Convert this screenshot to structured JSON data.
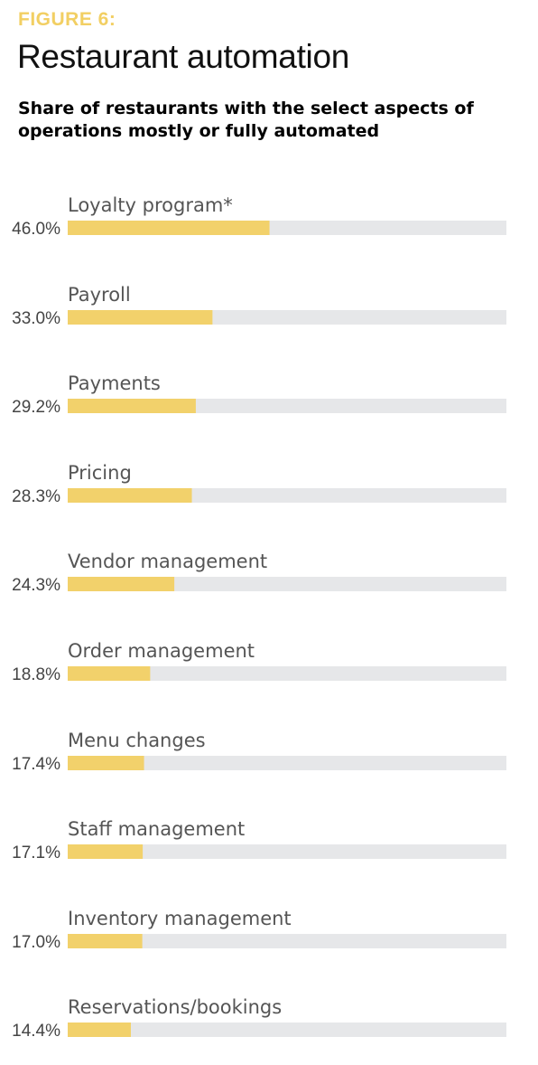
{
  "figure_label": "FIGURE 6:",
  "title": "Restaurant automation",
  "subtitle": "Share of restaurants with the select aspects of operations mostly or fully automated",
  "colors": {
    "bar": "#f2d16b",
    "track": "#e6e7e9",
    "label_accent": "#f2cf63"
  },
  "chart_data": {
    "type": "bar",
    "orientation": "horizontal",
    "title": "Restaurant automation",
    "subtitle": "Share of restaurants with the select aspects of operations mostly or fully automated",
    "xlim": [
      0,
      100
    ],
    "grid": false,
    "categories": [
      "Loyalty program*",
      "Payroll",
      "Payments",
      "Pricing",
      "Vendor management",
      "Order management",
      "Menu changes",
      "Staff management",
      "Inventory management",
      "Reservations/bookings"
    ],
    "values": [
      46.0,
      33.0,
      29.2,
      28.3,
      24.3,
      18.8,
      17.4,
      17.1,
      17.0,
      14.4
    ],
    "value_labels": [
      "46.0%",
      "33.0%",
      "29.2%",
      "28.3%",
      "24.3%",
      "18.8%",
      "17.4%",
      "17.1%",
      "17.0%",
      "14.4%"
    ]
  }
}
